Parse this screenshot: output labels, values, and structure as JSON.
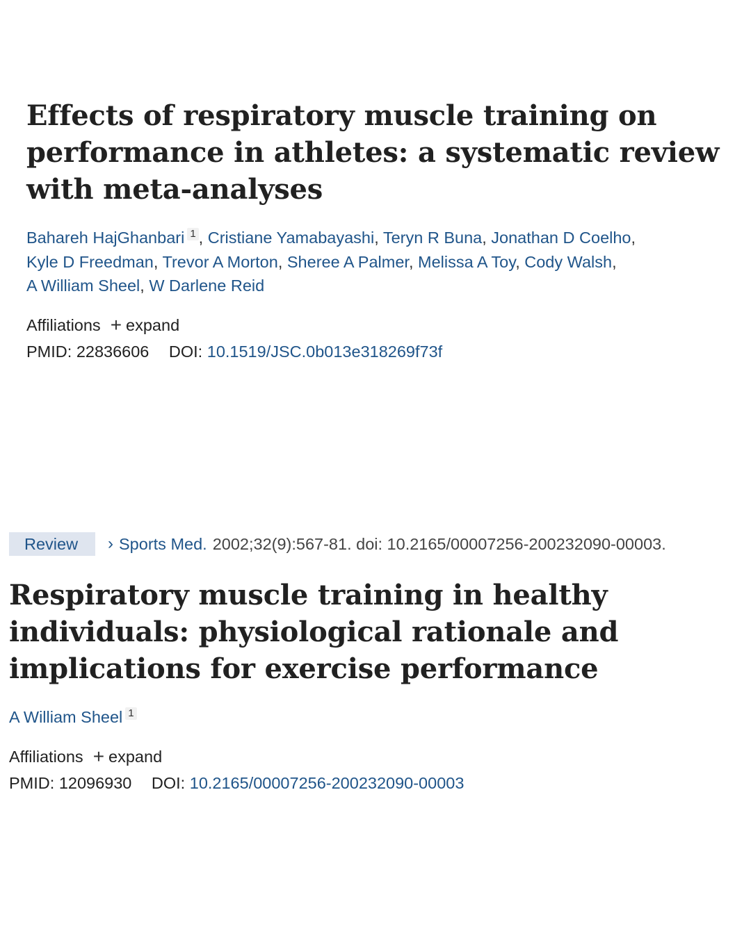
{
  "articles": [
    {
      "title": "Effects of respiratory muscle training on performance in athletes: a systematic review with meta-analyses",
      "authors": [
        {
          "name": "Bahareh HajGhanbari",
          "sup": "1"
        },
        {
          "name": "Cristiane Yamabayashi"
        },
        {
          "name": "Teryn R Buna"
        },
        {
          "name": "Jonathan D Coelho"
        },
        {
          "name": "Kyle D Freedman"
        },
        {
          "name": "Trevor A Morton"
        },
        {
          "name": "Sheree A Palmer"
        },
        {
          "name": "Melissa A Toy"
        },
        {
          "name": "Cody Walsh"
        },
        {
          "name": "A William Sheel"
        },
        {
          "name": "W Darlene Reid"
        }
      ],
      "affiliations_label": "Affiliations",
      "expand_label": "expand",
      "pmid_label": "PMID:",
      "pmid": "22836606",
      "doi_label": "DOI:",
      "doi": "10.1519/JSC.0b013e318269f73f"
    },
    {
      "badge": "Review",
      "journal": "Sports Med.",
      "citation": "2002;32(9):567-81. doi: 10.2165/00007256-200232090-00003.",
      "title": "Respiratory muscle training in healthy individuals: physiological rationale and implications for exercise performance",
      "authors": [
        {
          "name": "A William Sheel",
          "sup": "1"
        }
      ],
      "affiliations_label": "Affiliations",
      "expand_label": "expand",
      "pmid_label": "PMID:",
      "pmid": "12096930",
      "doi_label": "DOI:",
      "doi": "10.2165/00007256-200232090-00003"
    }
  ],
  "icons": {
    "plus": "plus-icon",
    "chevron": "chevron-right-icon"
  }
}
